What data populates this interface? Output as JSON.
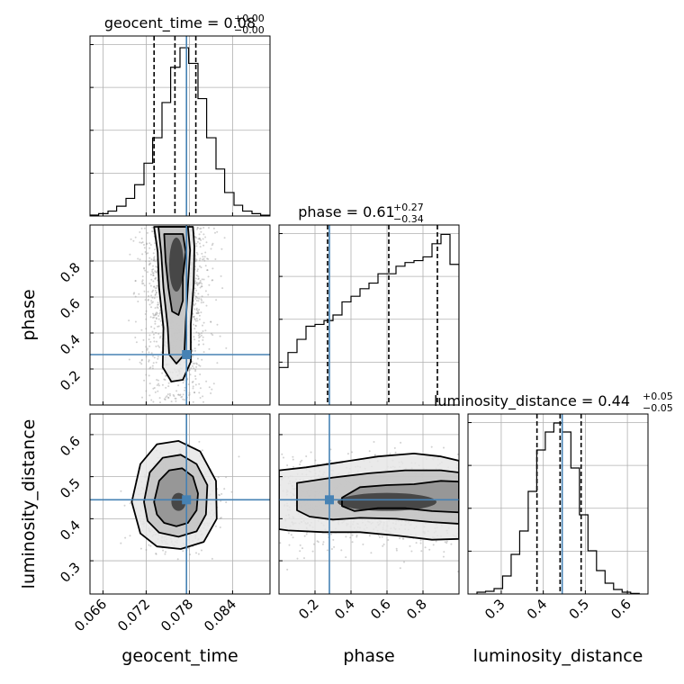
{
  "chart_data": {
    "type": "corner",
    "parameters": [
      "geocent_time",
      "phase",
      "luminosity_distance"
    ],
    "truths": {
      "geocent_time": 0.0776,
      "phase": 0.28,
      "luminosity_distance": 0.445
    },
    "truth_color": "#4682b4",
    "titles": {
      "geocent_time": {
        "prefix": "geocent_time = 0.08",
        "plus": "+0.00",
        "minus": "−0.00"
      },
      "phase": {
        "prefix": "phase = 0.61",
        "plus": "+0.27",
        "minus": "−0.34"
      },
      "luminosity_distance": {
        "prefix": "luminosity_distance = 0.44",
        "plus": "+0.05",
        "minus": "−0.05"
      }
    },
    "xlabels": [
      "geocent_time",
      "phase",
      "luminosity_distance"
    ],
    "ylabels": [
      "phase",
      "luminosity_distance"
    ],
    "ranges": {
      "geocent_time": [
        0.0642,
        0.0892
      ],
      "phase": [
        0.0,
        1.0
      ],
      "luminosity_distance": [
        0.221,
        0.649
      ]
    },
    "ticks": {
      "geocent_time": [
        "0.066",
        "0.072",
        "0.078",
        "0.084"
      ],
      "phase": [
        "0.2",
        "0.4",
        "0.6",
        "0.8"
      ],
      "luminosity_distance": [
        "0.3",
        "0.4",
        "0.5",
        "0.6"
      ]
    },
    "quantiles": {
      "geocent_time": [
        0.0731,
        0.076,
        0.0789
      ],
      "phase": [
        0.27,
        0.61,
        0.88
      ],
      "luminosity_distance": [
        0.385,
        0.44,
        0.49
      ]
    },
    "histograms": {
      "geocent_time": {
        "edges": [
          0.0642,
          0.0654,
          0.0667,
          0.0679,
          0.0692,
          0.0704,
          0.0717,
          0.0729,
          0.0742,
          0.0754,
          0.0767,
          0.0779,
          0.0792,
          0.0804,
          0.0817,
          0.0829,
          0.0842,
          0.0854,
          0.0867,
          0.0879,
          0.0892
        ],
        "counts": [
          0.005,
          0.012,
          0.025,
          0.05,
          0.09,
          0.16,
          0.27,
          0.4,
          0.58,
          0.76,
          0.86,
          0.78,
          0.6,
          0.4,
          0.24,
          0.12,
          0.055,
          0.025,
          0.012,
          0.004
        ],
        "ymax": 0.92
      },
      "phase": {
        "edges": [
          0,
          0.05,
          0.1,
          0.15,
          0.2,
          0.25,
          0.3,
          0.35,
          0.4,
          0.45,
          0.5,
          0.55,
          0.6,
          0.65,
          0.7,
          0.75,
          0.8,
          0.85,
          0.9,
          0.95,
          1.0
        ],
        "counts": [
          0.2,
          0.28,
          0.35,
          0.42,
          0.43,
          0.45,
          0.48,
          0.55,
          0.58,
          0.62,
          0.65,
          0.7,
          0.7,
          0.74,
          0.76,
          0.77,
          0.79,
          0.86,
          0.91,
          0.75
        ],
        "ymax": 0.96
      },
      "luminosity_distance": {
        "edges": [
          0.2424,
          0.2627,
          0.283,
          0.3033,
          0.3236,
          0.3439,
          0.3642,
          0.3845,
          0.4048,
          0.4251,
          0.4454,
          0.4657,
          0.486,
          0.5063,
          0.5266,
          0.5469,
          0.5672,
          0.5875,
          0.6078,
          0.6281
        ],
        "counts": [
          0.01,
          0.015,
          0.03,
          0.1,
          0.22,
          0.35,
          0.57,
          0.8,
          0.9,
          0.95,
          0.9,
          0.7,
          0.44,
          0.24,
          0.13,
          0.06,
          0.025,
          0.01,
          0.003
        ],
        "ymax": 1.0
      }
    },
    "contours_2d": [
      {
        "x": "geocent_time",
        "y": "phase",
        "center": [
          0.0762,
          0.78
        ],
        "levels": [
          [
            [
              0.0731,
              0.99
            ],
            [
              0.0736,
              0.85
            ],
            [
              0.0738,
              0.65
            ],
            [
              0.0744,
              0.43
            ],
            [
              0.0743,
              0.21
            ],
            [
              0.0755,
              0.13
            ],
            [
              0.0771,
              0.14
            ],
            [
              0.0782,
              0.24
            ],
            [
              0.0782,
              0.45
            ],
            [
              0.0786,
              0.67
            ],
            [
              0.0787,
              0.88
            ],
            [
              0.0785,
              0.99
            ]
          ],
          [
            [
              0.0737,
              0.99
            ],
            [
              0.0741,
              0.84
            ],
            [
              0.0744,
              0.65
            ],
            [
              0.075,
              0.43
            ],
            [
              0.0752,
              0.28
            ],
            [
              0.0762,
              0.23
            ],
            [
              0.0773,
              0.28
            ],
            [
              0.0775,
              0.46
            ],
            [
              0.0778,
              0.66
            ],
            [
              0.0781,
              0.86
            ],
            [
              0.0778,
              0.99
            ]
          ],
          [
            [
              0.0745,
              0.95
            ],
            [
              0.0747,
              0.8
            ],
            [
              0.0751,
              0.65
            ],
            [
              0.0756,
              0.52
            ],
            [
              0.0765,
              0.5
            ],
            [
              0.0771,
              0.58
            ],
            [
              0.0771,
              0.71
            ],
            [
              0.0775,
              0.85
            ],
            [
              0.0771,
              0.95
            ]
          ]
        ]
      },
      {
        "x": "geocent_time",
        "y": "luminosity_distance",
        "center": [
          0.0765,
          0.44
        ],
        "levels": [
          [
            [
              0.07,
              0.44
            ],
            [
              0.0712,
              0.53
            ],
            [
              0.0735,
              0.577
            ],
            [
              0.0765,
              0.585
            ],
            [
              0.0795,
              0.56
            ],
            [
              0.0817,
              0.49
            ],
            [
              0.0818,
              0.4
            ],
            [
              0.08,
              0.345
            ],
            [
              0.0768,
              0.328
            ],
            [
              0.0735,
              0.334
            ],
            [
              0.0712,
              0.365
            ]
          ],
          [
            [
              0.0717,
              0.44
            ],
            [
              0.0725,
              0.51
            ],
            [
              0.0743,
              0.545
            ],
            [
              0.0768,
              0.552
            ],
            [
              0.079,
              0.53
            ],
            [
              0.0805,
              0.48
            ],
            [
              0.0803,
              0.41
            ],
            [
              0.079,
              0.37
            ],
            [
              0.0765,
              0.357
            ],
            [
              0.0738,
              0.367
            ],
            [
              0.0722,
              0.395
            ]
          ],
          [
            [
              0.0731,
              0.44
            ],
            [
              0.0738,
              0.49
            ],
            [
              0.0752,
              0.515
            ],
            [
              0.077,
              0.52
            ],
            [
              0.0785,
              0.5
            ],
            [
              0.0792,
              0.46
            ],
            [
              0.079,
              0.42
            ],
            [
              0.0778,
              0.39
            ],
            [
              0.0762,
              0.382
            ],
            [
              0.0745,
              0.39
            ],
            [
              0.0735,
              0.41
            ]
          ]
        ]
      },
      {
        "x": "phase",
        "y": "luminosity_distance",
        "center": [
          0.6,
          0.44
        ],
        "levels": [
          [
            [
              0.0,
              0.515
            ],
            [
              0.15,
              0.522
            ],
            [
              0.35,
              0.535
            ],
            [
              0.55,
              0.548
            ],
            [
              0.75,
              0.555
            ],
            [
              0.9,
              0.548
            ],
            [
              1.0,
              0.538
            ],
            [
              1.0,
              0.352
            ],
            [
              0.85,
              0.35
            ],
            [
              0.65,
              0.36
            ],
            [
              0.45,
              0.368
            ],
            [
              0.25,
              0.368
            ],
            [
              0.05,
              0.372
            ],
            [
              0.0,
              0.375
            ]
          ],
          [
            [
              0.1,
              0.485
            ],
            [
              0.3,
              0.498
            ],
            [
              0.5,
              0.508
            ],
            [
              0.7,
              0.515
            ],
            [
              0.9,
              0.515
            ],
            [
              1.0,
              0.51
            ],
            [
              1.0,
              0.388
            ],
            [
              0.85,
              0.392
            ],
            [
              0.65,
              0.4
            ],
            [
              0.45,
              0.402
            ],
            [
              0.3,
              0.398
            ],
            [
              0.17,
              0.405
            ],
            [
              0.1,
              0.42
            ]
          ],
          [
            [
              0.35,
              0.45
            ],
            [
              0.45,
              0.475
            ],
            [
              0.6,
              0.48
            ],
            [
              0.75,
              0.482
            ],
            [
              0.9,
              0.49
            ],
            [
              1.0,
              0.488
            ],
            [
              1.0,
              0.415
            ],
            [
              0.85,
              0.418
            ],
            [
              0.7,
              0.425
            ],
            [
              0.55,
              0.425
            ],
            [
              0.42,
              0.418
            ],
            [
              0.35,
              0.43
            ]
          ]
        ]
      }
    ]
  }
}
